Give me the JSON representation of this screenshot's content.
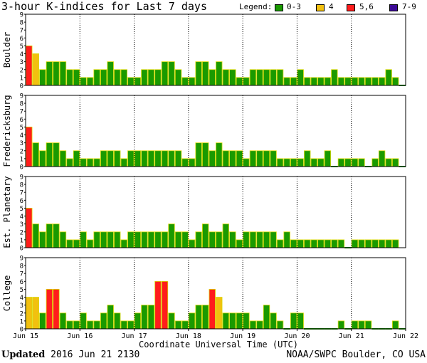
{
  "title": "3-hour K-indices for Last 7 days",
  "legend": {
    "title": "Legend:",
    "items": [
      {
        "label": "0-3",
        "color": "#1a9a00"
      },
      {
        "label": "4",
        "color": "#f2c010"
      },
      {
        "label": "5,6",
        "color": "#ff1c1c"
      },
      {
        "label": "7-9",
        "color": "#3c0a96"
      }
    ]
  },
  "xlabel": "Coordinate Universal Time (UTC)",
  "footer": {
    "updated_prefix": "Updated",
    "updated_value": "2016 Jun 21 2130",
    "credit": "NOAA/SWPC Boulder, CO USA"
  },
  "chart_data": {
    "type": "bar",
    "x_ticks": [
      "Jun 15",
      "Jun 16",
      "Jun 17",
      "Jun 18",
      "Jun 19",
      "Jun 20",
      "Jun 21",
      "Jun 22"
    ],
    "y_ticks": [
      "0",
      "1",
      "2",
      "3",
      "4",
      "5",
      "6",
      "7",
      "8",
      "9"
    ],
    "ylim": [
      0,
      9
    ],
    "bins_per_day": 8,
    "panels": [
      {
        "name": "Boulder",
        "values": [
          5,
          4,
          2,
          3,
          3,
          3,
          2,
          2,
          1,
          1,
          2,
          2,
          3,
          2,
          2,
          1,
          1,
          2,
          2,
          2,
          3,
          3,
          2,
          1,
          1,
          3,
          3,
          2,
          3,
          2,
          2,
          1,
          1,
          2,
          2,
          2,
          2,
          2,
          1,
          1,
          2,
          1,
          1,
          1,
          1,
          2,
          1,
          1,
          1,
          1,
          1,
          1,
          1,
          2,
          1,
          0
        ]
      },
      {
        "name": "Fredericksburg",
        "values": [
          5,
          3,
          2,
          3,
          3,
          2,
          1,
          2,
          1,
          1,
          1,
          2,
          2,
          2,
          1,
          2,
          2,
          2,
          2,
          2,
          2,
          2,
          2,
          1,
          1,
          3,
          3,
          2,
          3,
          2,
          2,
          2,
          1,
          2,
          2,
          2,
          2,
          1,
          1,
          1,
          1,
          2,
          1,
          1,
          2,
          0,
          1,
          1,
          1,
          1,
          0,
          1,
          2,
          1,
          1,
          0
        ]
      },
      {
        "name": "Est. Planetary",
        "values": [
          5,
          3,
          2,
          3,
          3,
          2,
          1,
          1,
          2,
          1,
          2,
          2,
          2,
          2,
          1,
          2,
          2,
          2,
          2,
          2,
          2,
          3,
          2,
          2,
          1,
          2,
          3,
          2,
          2,
          3,
          2,
          1,
          2,
          2,
          2,
          2,
          2,
          1,
          2,
          1,
          1,
          1,
          1,
          1,
          1,
          1,
          1,
          0,
          1,
          1,
          1,
          1,
          1,
          1,
          1
        ]
      },
      {
        "name": "College",
        "values": [
          4,
          4,
          2,
          5,
          5,
          2,
          1,
          1,
          2,
          1,
          1,
          2,
          3,
          2,
          1,
          1,
          2,
          3,
          3,
          6,
          6,
          2,
          1,
          1,
          2,
          3,
          3,
          5,
          4,
          2,
          2,
          2,
          2,
          1,
          1,
          3,
          2,
          1,
          0,
          2,
          2,
          0,
          0,
          0,
          0,
          0,
          1,
          0,
          1,
          1,
          1,
          0,
          0,
          0,
          1,
          0
        ]
      }
    ]
  }
}
